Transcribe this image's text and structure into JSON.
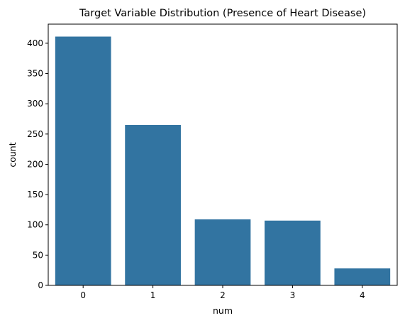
{
  "chart_data": {
    "type": "bar",
    "title": "Target Variable Distribution (Presence of Heart Disease)",
    "xlabel": "num",
    "ylabel": "count",
    "categories": [
      "0",
      "1",
      "2",
      "3",
      "4"
    ],
    "values": [
      411,
      265,
      109,
      107,
      28
    ],
    "ylim": [
      0,
      431.55
    ],
    "yticks": [
      "0",
      "50",
      "100",
      "150",
      "200",
      "250",
      "300",
      "350",
      "400"
    ],
    "bar_color": "#3274a1",
    "grid": false,
    "legend": "none"
  }
}
